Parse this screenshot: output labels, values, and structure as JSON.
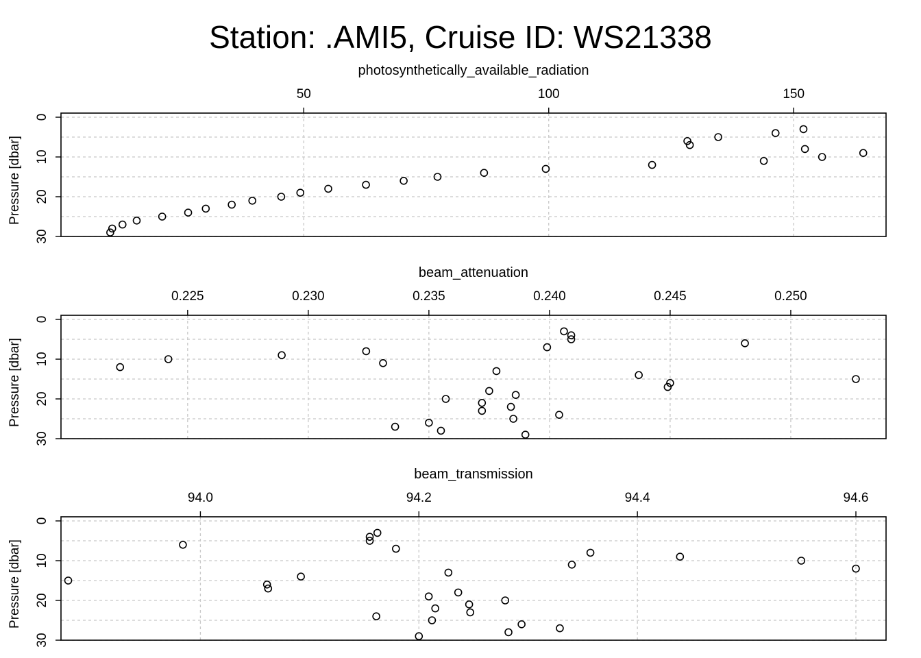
{
  "title": "Station: .AMI5, Cruise ID: WS21338",
  "chart_data": [
    {
      "type": "scatter",
      "title": "photosynthetically_available_radiation",
      "ylabel": "Pressure [dbar]",
      "xlim": [
        6.6,
        162.7
      ],
      "ylim": [
        30,
        0
      ],
      "xticks": [
        50,
        100,
        150
      ],
      "yticks": [
        0,
        10,
        20,
        30
      ],
      "grid": true,
      "points": [
        {
          "x": 152.0,
          "y": 3
        },
        {
          "x": 146.3,
          "y": 4
        },
        {
          "x": 134.6,
          "y": 5
        },
        {
          "x": 128.3,
          "y": 6
        },
        {
          "x": 128.8,
          "y": 7
        },
        {
          "x": 152.3,
          "y": 8
        },
        {
          "x": 164.2,
          "y": 9
        },
        {
          "x": 155.8,
          "y": 10
        },
        {
          "x": 143.9,
          "y": 11
        },
        {
          "x": 121.1,
          "y": 12
        },
        {
          "x": 99.4,
          "y": 13
        },
        {
          "x": 86.8,
          "y": 14
        },
        {
          "x": 77.3,
          "y": 15
        },
        {
          "x": 70.4,
          "y": 16
        },
        {
          "x": 62.7,
          "y": 17
        },
        {
          "x": 55.0,
          "y": 18
        },
        {
          "x": 49.3,
          "y": 19
        },
        {
          "x": 45.4,
          "y": 20
        },
        {
          "x": 39.5,
          "y": 21
        },
        {
          "x": 35.3,
          "y": 22
        },
        {
          "x": 30.0,
          "y": 23
        },
        {
          "x": 26.4,
          "y": 24
        },
        {
          "x": 21.1,
          "y": 25
        },
        {
          "x": 15.9,
          "y": 26
        },
        {
          "x": 13.0,
          "y": 27
        },
        {
          "x": 10.9,
          "y": 28
        },
        {
          "x": 10.5,
          "y": 29
        }
      ]
    },
    {
      "type": "scatter",
      "title": "beam_attenuation",
      "ylabel": "Pressure [dbar]",
      "xlim": [
        0.221,
        0.2527
      ],
      "ylim": [
        30,
        0
      ],
      "xticks": [
        0.225,
        0.23,
        0.235,
        0.24,
        0.245,
        0.25
      ],
      "xtick_labels": [
        "0.225",
        "0.230",
        "0.235",
        "0.240",
        "0.245",
        "0.250"
      ],
      "yticks": [
        0,
        10,
        20,
        30
      ],
      "grid": true,
      "points": [
        {
          "x": 0.2406,
          "y": 3
        },
        {
          "x": 0.2409,
          "y": 4
        },
        {
          "x": 0.2409,
          "y": 5
        },
        {
          "x": 0.2481,
          "y": 6
        },
        {
          "x": 0.2399,
          "y": 7
        },
        {
          "x": 0.2324,
          "y": 8
        },
        {
          "x": 0.2289,
          "y": 9
        },
        {
          "x": 0.2242,
          "y": 10
        },
        {
          "x": 0.2331,
          "y": 11
        },
        {
          "x": 0.2222,
          "y": 12
        },
        {
          "x": 0.2378,
          "y": 13
        },
        {
          "x": 0.2437,
          "y": 14
        },
        {
          "x": 0.2527,
          "y": 15
        },
        {
          "x": 0.245,
          "y": 16
        },
        {
          "x": 0.2449,
          "y": 17
        },
        {
          "x": 0.2375,
          "y": 18
        },
        {
          "x": 0.2386,
          "y": 19
        },
        {
          "x": 0.2357,
          "y": 20
        },
        {
          "x": 0.2372,
          "y": 21
        },
        {
          "x": 0.2384,
          "y": 22
        },
        {
          "x": 0.2372,
          "y": 23
        },
        {
          "x": 0.2404,
          "y": 24
        },
        {
          "x": 0.2385,
          "y": 25
        },
        {
          "x": 0.235,
          "y": 26
        },
        {
          "x": 0.2336,
          "y": 27
        },
        {
          "x": 0.2355,
          "y": 28
        },
        {
          "x": 0.239,
          "y": 29
        }
      ]
    },
    {
      "type": "scatter",
      "title": "beam_transmission",
      "ylabel": "Pressure [dbar]",
      "xlim": [
        93.9,
        94.6
      ],
      "ylim": [
        30,
        0
      ],
      "xticks": [
        94.0,
        94.2,
        94.4,
        94.6
      ],
      "xtick_labels": [
        "94.0",
        "94.2",
        "94.4",
        "94.6"
      ],
      "yticks": [
        0,
        10,
        20,
        30
      ],
      "grid": true,
      "points": [
        {
          "x": 94.162,
          "y": 3
        },
        {
          "x": 94.155,
          "y": 4
        },
        {
          "x": 94.155,
          "y": 5
        },
        {
          "x": 93.984,
          "y": 6
        },
        {
          "x": 94.179,
          "y": 7
        },
        {
          "x": 94.357,
          "y": 8
        },
        {
          "x": 94.439,
          "y": 9
        },
        {
          "x": 94.55,
          "y": 10
        },
        {
          "x": 94.34,
          "y": 11
        },
        {
          "x": 94.6,
          "y": 12
        },
        {
          "x": 94.227,
          "y": 13
        },
        {
          "x": 94.092,
          "y": 14
        },
        {
          "x": 93.879,
          "y": 15
        },
        {
          "x": 94.061,
          "y": 16
        },
        {
          "x": 94.062,
          "y": 17
        },
        {
          "x": 94.236,
          "y": 18
        },
        {
          "x": 94.209,
          "y": 19
        },
        {
          "x": 94.279,
          "y": 20
        },
        {
          "x": 94.246,
          "y": 21
        },
        {
          "x": 94.215,
          "y": 22
        },
        {
          "x": 94.247,
          "y": 23
        },
        {
          "x": 94.161,
          "y": 24
        },
        {
          "x": 94.212,
          "y": 25
        },
        {
          "x": 94.294,
          "y": 26
        },
        {
          "x": 94.329,
          "y": 27
        },
        {
          "x": 94.282,
          "y": 28
        },
        {
          "x": 94.2,
          "y": 29
        }
      ]
    }
  ]
}
